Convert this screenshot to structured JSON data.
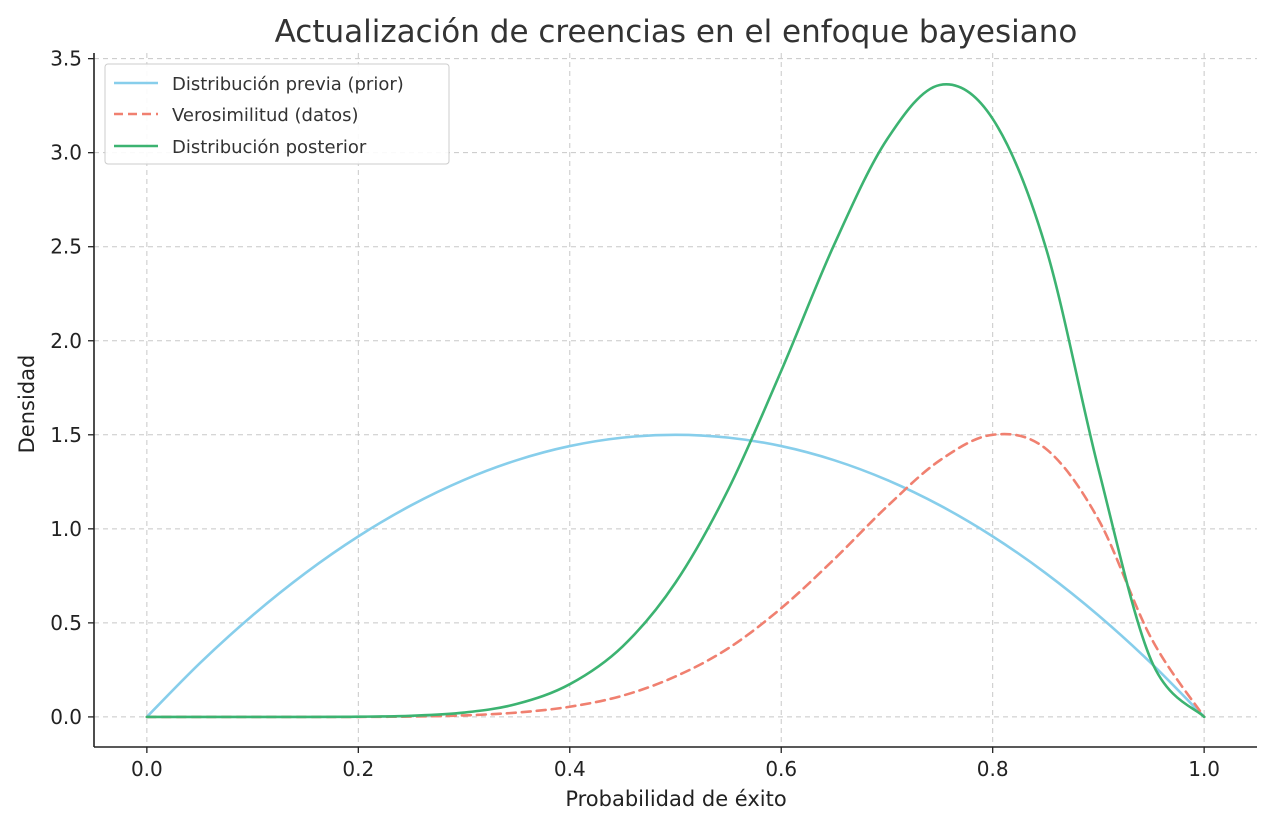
{
  "chart_data": {
    "type": "line",
    "title": "Actualización de creencias en el enfoque bayesiano",
    "xlabel": "Probabilidad de éxito",
    "ylabel": "Densidad",
    "xlim": [
      -0.05,
      1.05
    ],
    "ylim": [
      -0.16,
      3.53
    ],
    "xticks": [
      0.0,
      0.2,
      0.4,
      0.6,
      0.8,
      1.0
    ],
    "xtick_labels": [
      "0.0",
      "0.2",
      "0.4",
      "0.6",
      "0.8",
      "1.0"
    ],
    "yticks": [
      0.0,
      0.5,
      1.0,
      1.5,
      2.0,
      2.5,
      3.0,
      3.5
    ],
    "ytick_labels": [
      "0.0",
      "0.5",
      "1.0",
      "1.5",
      "2.0",
      "2.5",
      "3.0",
      "3.5"
    ],
    "grid": true,
    "legend_position": "top-left",
    "series": [
      {
        "name": "Distribución previa (prior)",
        "color": "#87CEEB",
        "style": "solid",
        "x": [
          0.0,
          0.05,
          0.1,
          0.15,
          0.2,
          0.25,
          0.3,
          0.35,
          0.4,
          0.45,
          0.5,
          0.55,
          0.6,
          0.65,
          0.7,
          0.75,
          0.8,
          0.85,
          0.9,
          0.95,
          1.0
        ],
        "y": [
          0.0,
          0.285,
          0.54,
          0.765,
          0.96,
          1.125,
          1.26,
          1.365,
          1.44,
          1.485,
          1.5,
          1.485,
          1.44,
          1.365,
          1.26,
          1.125,
          0.96,
          0.765,
          0.54,
          0.285,
          0.0
        ]
      },
      {
        "name": "Verosimilitud (datos)",
        "color": "#F08070",
        "style": "dashed",
        "x": [
          0.0,
          0.05,
          0.1,
          0.15,
          0.2,
          0.25,
          0.3,
          0.35,
          0.4,
          0.45,
          0.5,
          0.55,
          0.6,
          0.65,
          0.7,
          0.75,
          0.8,
          0.85,
          0.9,
          0.95,
          1.0
        ],
        "y": [
          0.0,
          0.0,
          0.0,
          0.0,
          0.0,
          0.002,
          0.008,
          0.023,
          0.054,
          0.113,
          0.215,
          0.365,
          0.578,
          0.838,
          1.118,
          1.364,
          1.5,
          1.427,
          1.05,
          0.418,
          0.0
        ]
      },
      {
        "name": "Distribución posterior",
        "color": "#3CB371",
        "style": "solid",
        "x": [
          0.0,
          0.05,
          0.1,
          0.15,
          0.2,
          0.25,
          0.3,
          0.35,
          0.4,
          0.45,
          0.5,
          0.55,
          0.6,
          0.65,
          0.7,
          0.75,
          0.8,
          0.85,
          0.9,
          0.95,
          1.0
        ],
        "y": [
          0.0,
          0.0,
          0.0,
          0.0,
          0.001,
          0.006,
          0.023,
          0.069,
          0.174,
          0.375,
          0.714,
          1.21,
          1.84,
          2.51,
          3.07,
          3.36,
          3.18,
          2.5,
          1.32,
          0.3,
          0.0
        ]
      }
    ]
  }
}
